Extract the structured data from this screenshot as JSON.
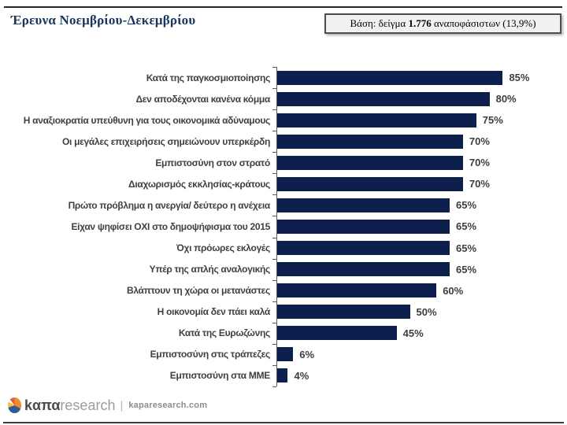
{
  "header": {
    "title": "Έρευνα Νοεμβρίου-Δεκεμβρίου",
    "base_note_prefix": "Βάση: δείγμα ",
    "base_note_bold": "1.776",
    "base_note_suffix": " αναποφάσιστων (13,9%)"
  },
  "chart_data": {
    "type": "bar",
    "orientation": "horizontal",
    "categories": [
      "Κατά της παγκοσμιοποίησης",
      "Δεν αποδέχονται κανένα κόμμα",
      "Η αναξιοκρατία υπεύθυνη για τους οικονομικά αδύναμους",
      "Οι μεγάλες επιχειρήσεις σημειώνουν υπερκέρδη",
      "Εμπιστοσύνη στον στρατό",
      "Διαχωρισμός εκκλησίας-κράτους",
      "Πρώτο πρόβλημα η ανεργία/ δεύτερο η ανέχεια",
      "Είχαν ψηφίσει ΟΧΙ στο δημοψήφισμα του 2015",
      "Όχι πρόωρες εκλογές",
      "Υπέρ της απλής αναλογικής",
      "Βλάπτουν τη χώρα οι μετανάστες",
      "Η οικονομία δεν πάει καλά",
      "Κατά της Ευρωζώνης",
      "Εμπιστοσύνη στις τράπεζες",
      "Εμπιστοσύνη στα ΜΜΕ"
    ],
    "values": [
      85,
      80,
      75,
      70,
      70,
      70,
      65,
      65,
      65,
      65,
      60,
      50,
      45,
      6,
      4
    ],
    "value_suffix": "%",
    "xlim": [
      0,
      100
    ],
    "bar_color": "#0d1f4c",
    "label_color": "#404040",
    "value_label_color": "#3d3d3d",
    "axis_color": "#595959",
    "grid": false,
    "legend": false
  },
  "footer": {
    "logo_bold": "kαπα",
    "logo_light": "research",
    "divider": "|",
    "site": "kaparesearch.com"
  }
}
